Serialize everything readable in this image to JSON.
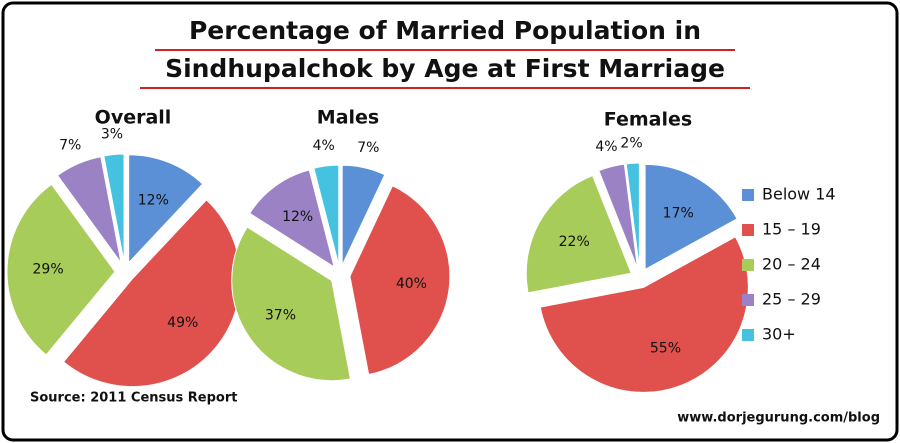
{
  "chart_data": {
    "type": "pie",
    "title": [
      "Percentage of Married Population in",
      "Sindhupalchok by Age at First Marriage"
    ],
    "categories": [
      "Below 14",
      "15 – 19",
      "20 – 24",
      "25 – 29",
      "30+"
    ],
    "colors": [
      "#5b8fd6",
      "#e0504d",
      "#a8cc5a",
      "#9a82c4",
      "#45c2e0"
    ],
    "pies": [
      {
        "title": "Overall",
        "values": [
          12,
          49,
          29,
          7,
          3
        ],
        "value_labels": [
          "12%",
          "49%",
          "29%",
          "7%",
          "3%"
        ]
      },
      {
        "title": "Males",
        "values": [
          7,
          40,
          37,
          12,
          4
        ],
        "value_labels": [
          "7%",
          "40%",
          "37%",
          "12%",
          "4%"
        ]
      },
      {
        "title": "Females",
        "values": [
          17,
          55,
          22,
          4,
          2
        ],
        "value_labels": [
          "17%",
          "55%",
          "22%",
          "4%",
          "2%"
        ]
      }
    ],
    "source": "Source: 2011 Census Report",
    "credit": "www.dorjegurung.com/blog"
  }
}
